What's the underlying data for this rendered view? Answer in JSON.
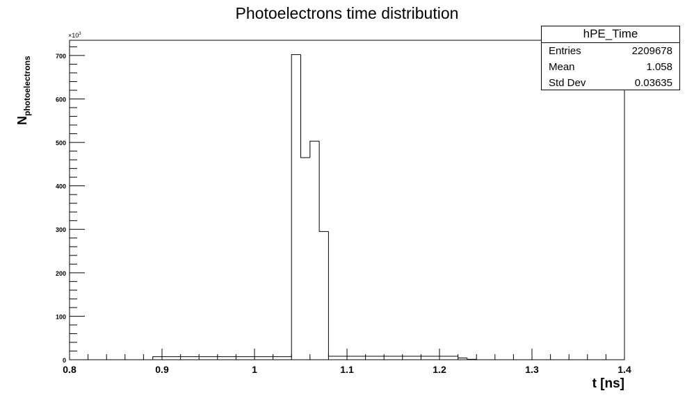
{
  "chart_data": {
    "type": "histogram",
    "title": "Photoelectrons time distribution",
    "xlabel": "t [ns]",
    "ylabel_main": "N",
    "ylabel_sub": "photoelectrons",
    "y_multiplier": "×10",
    "y_multiplier_exp": "3",
    "xlim": [
      0.8,
      1.4
    ],
    "ylim": [
      0,
      735
    ],
    "x_ticks": [
      "0.8",
      "0.9",
      "1",
      "1.1",
      "1.2",
      "1.3",
      "1.4"
    ],
    "y_ticks": [
      "0",
      "100",
      "200",
      "300",
      "400",
      "500",
      "600",
      "700"
    ],
    "bin_edges": [
      0.89,
      1.04,
      1.05,
      1.06,
      1.07,
      1.08,
      1.22,
      1.23,
      1.24
    ],
    "values": [
      7,
      702,
      465,
      503,
      295,
      8,
      4,
      1
    ],
    "stats": {
      "name": "hPE_Time",
      "rows": [
        {
          "label": "Entries",
          "value": "2209678"
        },
        {
          "label": "Mean",
          "value": "1.058"
        },
        {
          "label": "Std Dev",
          "value": "0.03635"
        }
      ]
    }
  }
}
